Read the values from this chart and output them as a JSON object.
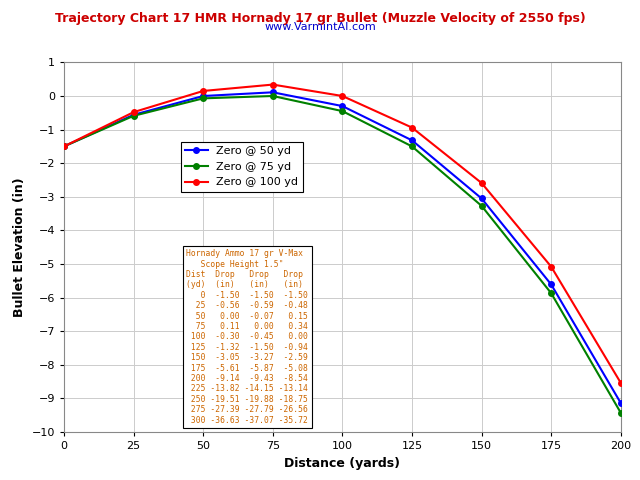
{
  "title": "Trajectory Chart 17 HMR Hornady 17 gr Bullet (Muzzle Velocity of 2550 fps)",
  "subtitle": "www.VarmintAI.com",
  "xlabel": "Distance (yards)",
  "ylabel": "Bullet Elevation (in)",
  "distances": [
    0,
    25,
    50,
    75,
    100,
    125,
    150,
    175,
    200
  ],
  "zero50": [
    -1.5,
    -0.56,
    0.0,
    0.11,
    -0.3,
    -1.32,
    -3.05,
    -5.61,
    -9.14
  ],
  "zero75": [
    -1.5,
    -0.59,
    -0.07,
    0.0,
    -0.45,
    -1.5,
    -3.27,
    -5.87,
    -9.43
  ],
  "zero100": [
    -1.5,
    -0.48,
    0.15,
    0.34,
    0.0,
    -0.94,
    -2.59,
    -5.08,
    -8.54
  ],
  "color50": "#0000ff",
  "color75": "#008000",
  "color100": "#ff0000",
  "xlim": [
    0,
    200
  ],
  "ylim": [
    -10,
    1
  ],
  "xticks": [
    0,
    25,
    50,
    75,
    100,
    125,
    150,
    175,
    200
  ],
  "yticks": [
    -10,
    -9,
    -8,
    -7,
    -6,
    -5,
    -4,
    -3,
    -2,
    -1,
    0,
    1
  ],
  "table_text": "Hornady Ammo 17 gr V-Max\n   Scope Height 1.5\"\nDist  Drop   Drop   Drop\n(yd)  (in)   (in)   (in)\n   0  -1.50  -1.50  -1.50\n  25  -0.56  -0.59  -0.48\n  50   0.00  -0.07   0.15\n  75   0.11   0.00   0.34\n 100  -0.30  -0.45   0.00\n 125  -1.32  -1.50  -0.94\n 150  -3.05  -3.27  -2.59\n 175  -5.61  -5.87  -5.08\n 200  -9.14  -9.43  -8.54\n 225 -13.82 -14.15 -13.14\n 250 -19.51 -19.88 -18.75\n 275 -27.39 -27.79 -26.56\n 300 -36.63 -37.07 -35.72",
  "title_color": "#cc0000",
  "subtitle_color": "#0000cc",
  "bg_color": "#ffffff",
  "grid_color": "#cccccc",
  "table_text_color": "#cc6600",
  "title_fontsize": 9,
  "subtitle_fontsize": 8,
  "axis_label_fontsize": 9,
  "tick_fontsize": 8,
  "legend_fontsize": 8,
  "table_fontsize": 5.8,
  "marker_size": 4,
  "line_width": 1.5
}
